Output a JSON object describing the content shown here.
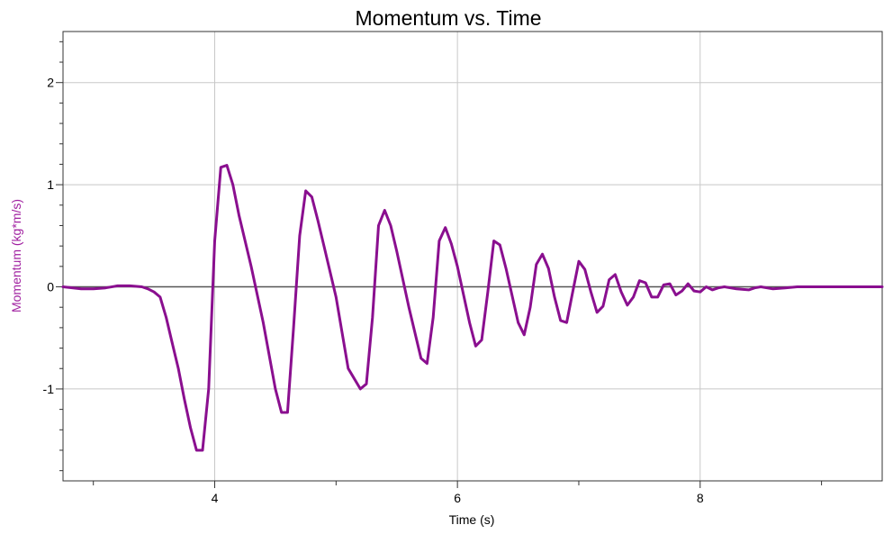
{
  "chart_data": {
    "type": "line",
    "title": "Momentum vs. Time",
    "xlabel": "Time (s)",
    "ylabel": "Momentum (kg*m/s)",
    "xlim": [
      2.75,
      9.5
    ],
    "ylim": [
      -1.9,
      2.5
    ],
    "x_ticks": [
      4,
      6,
      8
    ],
    "x_minor_ticks": [
      3,
      5,
      7,
      9
    ],
    "y_ticks": [
      -1,
      0,
      1,
      2
    ],
    "y_minor_step": 0.2,
    "grid": true,
    "legend": "none",
    "colors": {
      "series": "#8a0f8f",
      "axis_label": "#a020a0",
      "grid": "#c8c8c8",
      "zero_line": "#555555",
      "frame": "#333333"
    },
    "series": [
      {
        "x": [
          2.75,
          2.9,
          3.0,
          3.1,
          3.2,
          3.3,
          3.4,
          3.45,
          3.5,
          3.55,
          3.6,
          3.65,
          3.7,
          3.75,
          3.8,
          3.85,
          3.9,
          3.95,
          4.0,
          4.05,
          4.1,
          4.15,
          4.2,
          4.3,
          4.4,
          4.5,
          4.55,
          4.6,
          4.65,
          4.7,
          4.75,
          4.8,
          4.85,
          4.9,
          5.0,
          5.1,
          5.2,
          5.25,
          5.3,
          5.35,
          5.4,
          5.45,
          5.5,
          5.6,
          5.7,
          5.75,
          5.8,
          5.85,
          5.9,
          5.95,
          6.0,
          6.1,
          6.15,
          6.2,
          6.25,
          6.3,
          6.35,
          6.4,
          6.5,
          6.55,
          6.6,
          6.65,
          6.7,
          6.75,
          6.8,
          6.85,
          6.9,
          6.95,
          7.0,
          7.05,
          7.1,
          7.15,
          7.2,
          7.25,
          7.3,
          7.35,
          7.4,
          7.45,
          7.5,
          7.55,
          7.6,
          7.65,
          7.7,
          7.75,
          7.8,
          7.85,
          7.9,
          7.95,
          8.0,
          8.05,
          8.1,
          8.15,
          8.2,
          8.3,
          8.4,
          8.45,
          8.5,
          8.6,
          8.7,
          8.8,
          8.9,
          9.0,
          9.2,
          9.5
        ],
        "y": [
          0.0,
          -0.02,
          -0.02,
          -0.01,
          0.01,
          0.01,
          0.0,
          -0.02,
          -0.05,
          -0.1,
          -0.3,
          -0.55,
          -0.8,
          -1.1,
          -1.38,
          -1.6,
          -1.6,
          -1.0,
          0.45,
          1.17,
          1.19,
          1.0,
          0.7,
          0.2,
          -0.35,
          -1.0,
          -1.23,
          -1.23,
          -0.4,
          0.5,
          0.94,
          0.88,
          0.65,
          0.4,
          -0.1,
          -0.8,
          -1.0,
          -0.95,
          -0.3,
          0.6,
          0.75,
          0.6,
          0.35,
          -0.2,
          -0.7,
          -0.75,
          -0.3,
          0.45,
          0.58,
          0.42,
          0.2,
          -0.35,
          -0.58,
          -0.52,
          -0.05,
          0.45,
          0.41,
          0.18,
          -0.35,
          -0.47,
          -0.2,
          0.22,
          0.32,
          0.18,
          -0.1,
          -0.33,
          -0.35,
          -0.05,
          0.25,
          0.17,
          -0.05,
          -0.25,
          -0.19,
          0.07,
          0.12,
          -0.05,
          -0.18,
          -0.1,
          0.06,
          0.04,
          -0.1,
          -0.1,
          0.02,
          0.03,
          -0.08,
          -0.04,
          0.03,
          -0.04,
          -0.05,
          0.0,
          -0.03,
          -0.01,
          0.0,
          -0.02,
          -0.03,
          -0.01,
          0.0,
          -0.02,
          -0.01,
          0.0,
          0.0,
          0.0,
          0.0,
          0.0
        ]
      }
    ]
  }
}
